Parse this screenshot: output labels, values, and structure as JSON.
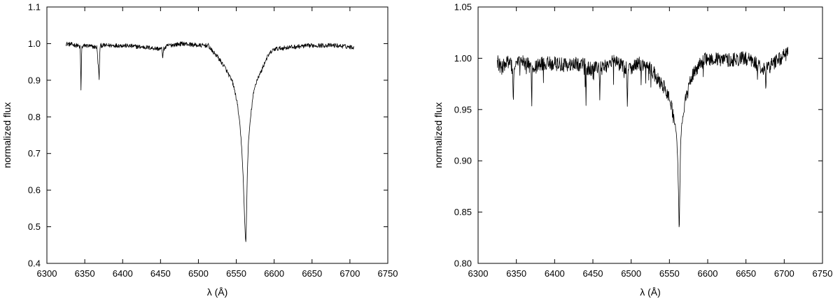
{
  "chart_data": [
    {
      "type": "line",
      "title": "",
      "xlabel": "λ (Å)",
      "ylabel": "normalized flux",
      "xlim": [
        6300,
        6750
      ],
      "ylim": [
        0.4,
        1.1
      ],
      "xticks": [
        6300,
        6350,
        6400,
        6450,
        6500,
        6550,
        6600,
        6650,
        6700,
        6750
      ],
      "yticks": [
        0.4,
        0.5,
        0.6,
        0.7,
        0.8,
        0.9,
        1.0,
        1.1
      ],
      "xtick_labels": [
        "6300",
        "6350",
        "6400",
        "6450",
        "6500",
        "6550",
        "6600",
        "6650",
        "6700",
        "6750"
      ],
      "ytick_labels": [
        "0.4",
        "0.5",
        "0.6",
        "0.7",
        "0.8",
        "0.9",
        "1.0",
        "1.1"
      ],
      "grid": false,
      "legend": "none",
      "series": [
        {
          "x": [
            6325,
            6340,
            6344,
            6345,
            6346,
            6350,
            6366,
            6369,
            6370,
            6371,
            6380,
            6400,
            6430,
            6452,
            6453,
            6454,
            6460,
            6480,
            6500,
            6513,
            6518,
            6525,
            6530,
            6535,
            6540,
            6545,
            6548,
            6551,
            6553,
            6555,
            6557,
            6558,
            6559,
            6560,
            6561,
            6562,
            6562.8,
            6563.5,
            6564.5,
            6566,
            6568,
            6570,
            6572,
            6575,
            6578,
            6582,
            6586,
            6590,
            6595,
            6600,
            6620,
            6650,
            6680,
            6705
          ],
          "y": [
            1.0,
            0.995,
            0.99,
            0.875,
            0.99,
            0.995,
            0.99,
            0.905,
            0.99,
            0.995,
            0.995,
            0.995,
            0.99,
            0.985,
            0.96,
            0.985,
            0.995,
            1.0,
            0.995,
            0.995,
            0.98,
            0.965,
            0.95,
            0.935,
            0.915,
            0.895,
            0.87,
            0.84,
            0.81,
            0.77,
            0.72,
            0.68,
            0.64,
            0.58,
            0.52,
            0.47,
            0.455,
            0.53,
            0.64,
            0.73,
            0.78,
            0.82,
            0.855,
            0.885,
            0.905,
            0.92,
            0.94,
            0.96,
            0.975,
            0.985,
            0.99,
            0.995,
            0.995,
            0.99
          ]
        }
      ]
    },
    {
      "type": "line",
      "title": "",
      "xlabel": "λ (Å)",
      "ylabel": "normalized flux",
      "xlim": [
        6300,
        6750
      ],
      "ylim": [
        0.8,
        1.05
      ],
      "xticks": [
        6300,
        6350,
        6400,
        6450,
        6500,
        6550,
        6600,
        6650,
        6700,
        6750
      ],
      "yticks": [
        0.8,
        0.85,
        0.9,
        0.95,
        1.0,
        1.05
      ],
      "xtick_labels": [
        "6300",
        "6350",
        "6400",
        "6450",
        "6500",
        "6550",
        "6600",
        "6650",
        "6700",
        "6750"
      ],
      "ytick_labels": [
        "0.80",
        "0.85",
        "0.90",
        "0.95",
        "1.00",
        "1.05"
      ],
      "grid": false,
      "legend": "none",
      "series": [
        {
          "x": [
            6325,
            6330,
            6340,
            6345,
            6346,
            6347,
            6355,
            6369,
            6370,
            6371,
            6385,
            6400,
            6415,
            6440,
            6441,
            6442,
            6458,
            6459,
            6460,
            6480,
            6494,
            6495,
            6496,
            6510,
            6525,
            6530,
            6535,
            6540,
            6545,
            6548,
            6550,
            6552,
            6554,
            6556,
            6558,
            6559,
            6560,
            6561,
            6562,
            6562.8,
            6563.5,
            6564.5,
            6566,
            6568,
            6570,
            6573,
            6576,
            6580,
            6585,
            6590,
            6600,
            6620,
            6650,
            6675,
            6676,
            6677,
            6690,
            6705
          ],
          "y": [
            0.998,
            0.99,
            0.998,
            0.99,
            0.955,
            0.99,
            0.998,
            0.992,
            0.962,
            0.99,
            0.995,
            0.995,
            0.993,
            0.995,
            0.96,
            0.99,
            0.99,
            0.96,
            0.99,
            0.998,
            0.99,
            0.953,
            0.99,
            0.995,
            0.99,
            0.985,
            0.98,
            0.975,
            0.97,
            0.965,
            0.96,
            0.955,
            0.948,
            0.94,
            0.932,
            0.926,
            0.915,
            0.895,
            0.865,
            0.825,
            0.865,
            0.915,
            0.935,
            0.945,
            0.955,
            0.965,
            0.975,
            0.983,
            0.99,
            0.995,
            1.0,
            0.998,
            1.0,
            0.99,
            0.968,
            0.99,
            0.998,
            1.005
          ]
        }
      ]
    }
  ]
}
